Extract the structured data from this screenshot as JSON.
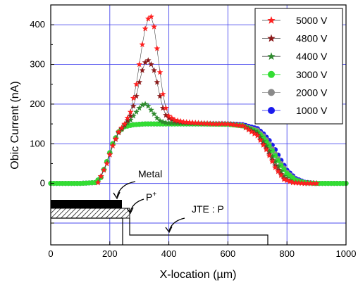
{
  "chart_data": {
    "type": "line",
    "xlabel": "X-location (µm)",
    "ylabel": "Obic Current (nA)",
    "xlim": [
      0,
      1000
    ],
    "ylim": [
      -155,
      450
    ],
    "xticks": [
      "0",
      "200",
      "400",
      "600",
      "800",
      "1000"
    ],
    "yticks": [
      "0",
      "100",
      "200",
      "300",
      "400"
    ],
    "grid": true,
    "legend_position": "top-right",
    "series": [
      {
        "name": "5000 V",
        "color": "#ff2020",
        "marker": "star",
        "x": [
          160,
          190,
          210,
          230,
          250,
          270,
          290,
          300,
          310,
          320,
          330,
          340,
          350,
          360,
          370,
          380,
          390,
          400,
          420,
          450,
          500,
          550,
          600,
          650,
          700,
          730,
          760,
          790,
          820,
          860,
          900
        ],
        "y": [
          2,
          50,
          95,
          130,
          150,
          180,
          250,
          300,
          350,
          390,
          415,
          420,
          395,
          340,
          280,
          225,
          190,
          170,
          160,
          155,
          152,
          150,
          150,
          145,
          120,
          85,
          40,
          10,
          2,
          0,
          0
        ]
      },
      {
        "name": "4800 V",
        "color": "#8b1a1a",
        "marker": "star",
        "x": [
          160,
          190,
          210,
          230,
          250,
          270,
          290,
          300,
          310,
          320,
          330,
          340,
          350,
          360,
          370,
          380,
          390,
          400,
          420,
          450,
          500,
          550,
          600,
          650,
          700,
          730,
          760,
          790,
          820,
          860,
          900
        ],
        "y": [
          2,
          50,
          95,
          128,
          148,
          170,
          220,
          255,
          285,
          305,
          310,
          300,
          285,
          255,
          220,
          190,
          172,
          165,
          158,
          154,
          152,
          150,
          150,
          145,
          122,
          88,
          45,
          12,
          2,
          0,
          0
        ]
      },
      {
        "name": "4400 V",
        "color": "#2e8b2e",
        "marker": "star",
        "x": [
          160,
          190,
          210,
          230,
          250,
          270,
          290,
          300,
          310,
          320,
          330,
          340,
          350,
          360,
          370,
          380,
          390,
          400,
          420,
          450,
          500,
          550,
          600,
          650,
          700,
          730,
          760,
          790,
          820,
          860,
          900
        ],
        "y": [
          2,
          50,
          95,
          128,
          145,
          160,
          180,
          190,
          198,
          200,
          195,
          185,
          175,
          165,
          158,
          155,
          153,
          152,
          152,
          152,
          151,
          150,
          150,
          146,
          128,
          95,
          55,
          18,
          3,
          0,
          0
        ]
      },
      {
        "name": "3000 V",
        "color": "#33dd33",
        "marker": "circle",
        "x": [
          0,
          100,
          150,
          170,
          190,
          210,
          230,
          250,
          280,
          320,
          400,
          500,
          600,
          650,
          700,
          720,
          740,
          760,
          780,
          800,
          830,
          860,
          900,
          1000
        ],
        "y": [
          0,
          0,
          2,
          15,
          55,
          100,
          130,
          143,
          148,
          150,
          150,
          150,
          149,
          145,
          130,
          115,
          95,
          70,
          45,
          25,
          8,
          2,
          0,
          0
        ]
      },
      {
        "name": "2000 V",
        "color": "#8a8a8a",
        "marker": "circle",
        "x": [
          0,
          100,
          150,
          170,
          190,
          210,
          230,
          250,
          280,
          320,
          400,
          500,
          600,
          650,
          700,
          720,
          740,
          760,
          780,
          800,
          830,
          860,
          900,
          1000
        ],
        "y": [
          0,
          0,
          2,
          15,
          55,
          100,
          130,
          143,
          148,
          150,
          150,
          150,
          149,
          146,
          134,
          120,
          100,
          75,
          50,
          28,
          9,
          2,
          0,
          0
        ]
      },
      {
        "name": "1000 V",
        "color": "#1a1aee",
        "marker": "circle",
        "x": [
          0,
          100,
          150,
          170,
          190,
          210,
          230,
          250,
          280,
          320,
          400,
          500,
          600,
          650,
          700,
          720,
          740,
          760,
          780,
          800,
          830,
          860,
          900,
          1000
        ],
        "y": [
          0,
          0,
          2,
          15,
          55,
          100,
          130,
          143,
          148,
          150,
          150,
          150,
          150,
          148,
          138,
          125,
          108,
          85,
          58,
          33,
          12,
          3,
          0,
          0
        ]
      }
    ],
    "annotations": [
      {
        "text": "Metal"
      },
      {
        "text": "P",
        "superscript": "+"
      },
      {
        "text": "JTE : P"
      }
    ]
  }
}
